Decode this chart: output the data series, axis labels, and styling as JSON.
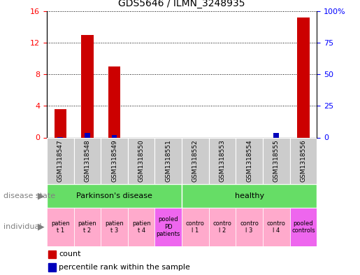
{
  "title": "GDS5646 / ILMN_3248935",
  "samples": [
    "GSM1318547",
    "GSM1318548",
    "GSM1318549",
    "GSM1318550",
    "GSM1318551",
    "GSM1318552",
    "GSM1318553",
    "GSM1318554",
    "GSM1318555",
    "GSM1318556"
  ],
  "count_values": [
    3.6,
    13.0,
    9.0,
    0,
    0,
    0,
    0,
    0,
    0,
    15.2
  ],
  "percentile_values": [
    0.5,
    3.8,
    2.0,
    0,
    0,
    0,
    0,
    0,
    3.8,
    0
  ],
  "ylim_left": [
    0,
    16
  ],
  "ylim_right": [
    0,
    100
  ],
  "left_ticks": [
    0,
    4,
    8,
    12,
    16
  ],
  "right_ticks": [
    0,
    25,
    50,
    75,
    100
  ],
  "left_tick_labels": [
    "0",
    "4",
    "8",
    "12",
    "16"
  ],
  "right_tick_labels": [
    "0",
    "25",
    "50",
    "75",
    "100%"
  ],
  "bar_color_red": "#CC0000",
  "bar_color_blue": "#0000BB",
  "sample_bg_color": "#CCCCCC",
  "green_color": "#66DD66",
  "pink_color": "#FFAACC",
  "purple_color": "#EE66EE",
  "individual_labels": [
    {
      "text": "patien\nt 1",
      "color": "#FFAACC"
    },
    {
      "text": "patien\nt 2",
      "color": "#FFAACC"
    },
    {
      "text": "patien\nt 3",
      "color": "#FFAACC"
    },
    {
      "text": "patien\nt 4",
      "color": "#FFAACC"
    },
    {
      "text": "pooled\nPD\npatients",
      "color": "#EE66EE"
    },
    {
      "text": "contro\nl 1",
      "color": "#FFAACC"
    },
    {
      "text": "contro\nl 2",
      "color": "#FFAACC"
    },
    {
      "text": "contro\nl 3",
      "color": "#FFAACC"
    },
    {
      "text": "contro\nl 4",
      "color": "#FFAACC"
    },
    {
      "text": "pooled\ncontrols",
      "color": "#EE66EE"
    }
  ]
}
